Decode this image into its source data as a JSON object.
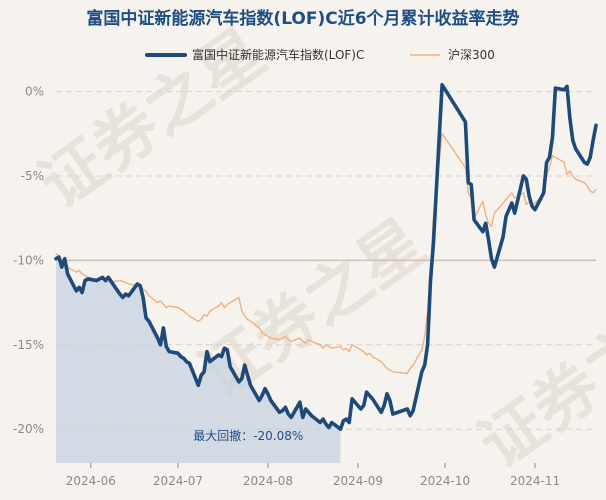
{
  "colors": {
    "background": "#f6f3ee",
    "title": "#1f4e82",
    "fund": "#1d4a78",
    "index": "#f0b07f",
    "grid": "#d9d2c8",
    "baseline": "#c9c1b6",
    "drawdown": "#c8d2df",
    "drawdown_label": "#1f4e82",
    "tick": "#8a8a8a",
    "watermark": "#e8e2da"
  },
  "watermark": {
    "text": "证券之星"
  },
  "chart_data": {
    "type": "line",
    "title": "富国中证新能源汽车指数(LOF)C近6个月累计收益率走势",
    "xlabel": "",
    "ylabel": "",
    "ylim": [
      -22,
      0.8
    ],
    "yticks": [
      0,
      -5,
      -10,
      -15,
      -20
    ],
    "ytick_labels": [
      "0%",
      "-5%",
      "-10%",
      "-15%",
      "-20%"
    ],
    "x_range": [
      "2024-05-20",
      "2024-11-22"
    ],
    "xticks": [
      "2024-06-01",
      "2024-07-01",
      "2024-08-01",
      "2024-09-01",
      "2024-10-01",
      "2024-11-01"
    ],
    "xtick_labels": [
      "2024-06",
      "2024-07",
      "2024-08",
      "2024-09",
      "2024-10",
      "2024-11"
    ],
    "legend_position": "top-center",
    "grid": true,
    "series": [
      {
        "name": "富国中证新能源汽车指数(LOF)C",
        "points": [
          [
            "2024-05-20",
            -9.9
          ],
          [
            "2024-05-21",
            -9.8
          ],
          [
            "2024-05-22",
            -10.4
          ],
          [
            "2024-05-23",
            -9.9
          ],
          [
            "2024-05-24",
            -10.8
          ],
          [
            "2024-05-27",
            -11.8
          ],
          [
            "2024-05-28",
            -11.6
          ],
          [
            "2024-05-29",
            -11.9
          ],
          [
            "2024-05-30",
            -11.2
          ],
          [
            "2024-05-31",
            -11.1
          ],
          [
            "2024-06-03",
            -11.2
          ],
          [
            "2024-06-04",
            -11.1
          ],
          [
            "2024-06-05",
            -11.0
          ],
          [
            "2024-06-06",
            -11.2
          ],
          [
            "2024-06-07",
            -11.0
          ],
          [
            "2024-06-11",
            -12.0
          ],
          [
            "2024-06-12",
            -12.2
          ],
          [
            "2024-06-13",
            -12.0
          ],
          [
            "2024-06-14",
            -12.1
          ],
          [
            "2024-06-17",
            -11.4
          ],
          [
            "2024-06-18",
            -11.5
          ],
          [
            "2024-06-19",
            -12.2
          ],
          [
            "2024-06-20",
            -13.4
          ],
          [
            "2024-06-21",
            -13.6
          ],
          [
            "2024-06-24",
            -14.6
          ],
          [
            "2024-06-25",
            -15.0
          ],
          [
            "2024-06-26",
            -14.0
          ],
          [
            "2024-06-27",
            -15.1
          ],
          [
            "2024-06-28",
            -15.4
          ],
          [
            "2024-07-01",
            -15.5
          ],
          [
            "2024-07-02",
            -15.7
          ],
          [
            "2024-07-03",
            -15.8
          ],
          [
            "2024-07-04",
            -16.0
          ],
          [
            "2024-07-05",
            -16.1
          ],
          [
            "2024-07-08",
            -17.4
          ],
          [
            "2024-07-09",
            -16.8
          ],
          [
            "2024-07-10",
            -16.6
          ],
          [
            "2024-07-11",
            -15.4
          ],
          [
            "2024-07-12",
            -16.0
          ],
          [
            "2024-07-15",
            -15.6
          ],
          [
            "2024-07-16",
            -15.7
          ],
          [
            "2024-07-17",
            -15.2
          ],
          [
            "2024-07-18",
            -15.3
          ],
          [
            "2024-07-19",
            -16.3
          ],
          [
            "2024-07-22",
            -17.2
          ],
          [
            "2024-07-23",
            -17.0
          ],
          [
            "2024-07-24",
            -16.2
          ],
          [
            "2024-07-25",
            -16.8
          ],
          [
            "2024-07-26",
            -17.4
          ],
          [
            "2024-07-29",
            -18.3
          ],
          [
            "2024-07-30",
            -18.0
          ],
          [
            "2024-07-31",
            -17.6
          ],
          [
            "2024-08-01",
            -17.9
          ],
          [
            "2024-08-02",
            -18.3
          ],
          [
            "2024-08-05",
            -19.0
          ],
          [
            "2024-08-06",
            -18.9
          ],
          [
            "2024-08-07",
            -18.7
          ],
          [
            "2024-08-08",
            -19.1
          ],
          [
            "2024-08-09",
            -19.3
          ],
          [
            "2024-08-12",
            -18.4
          ],
          [
            "2024-08-13",
            -19.3
          ],
          [
            "2024-08-14",
            -18.8
          ],
          [
            "2024-08-15",
            -19.0
          ],
          [
            "2024-08-16",
            -19.2
          ],
          [
            "2024-08-19",
            -19.6
          ],
          [
            "2024-08-20",
            -19.4
          ],
          [
            "2024-08-21",
            -19.7
          ],
          [
            "2024-08-22",
            -19.9
          ],
          [
            "2024-08-23",
            -19.6
          ],
          [
            "2024-08-26",
            -20.0
          ],
          [
            "2024-08-27",
            -19.5
          ],
          [
            "2024-08-28",
            -19.4
          ],
          [
            "2024-08-29",
            -19.6
          ],
          [
            "2024-08-30",
            -18.2
          ],
          [
            "2024-09-02",
            -18.8
          ],
          [
            "2024-09-03",
            -18.6
          ],
          [
            "2024-09-04",
            -17.8
          ],
          [
            "2024-09-05",
            -18.0
          ],
          [
            "2024-09-06",
            -18.2
          ],
          [
            "2024-09-09",
            -19.0
          ],
          [
            "2024-09-10",
            -18.6
          ],
          [
            "2024-09-11",
            -17.9
          ],
          [
            "2024-09-12",
            -18.3
          ],
          [
            "2024-09-13",
            -19.1
          ],
          [
            "2024-09-18",
            -18.8
          ],
          [
            "2024-09-19",
            -19.2
          ],
          [
            "2024-09-20",
            -18.9
          ],
          [
            "2024-09-23",
            -16.6
          ],
          [
            "2024-09-24",
            -16.2
          ],
          [
            "2024-09-25",
            -15.0
          ],
          [
            "2024-09-26",
            -11.2
          ],
          [
            "2024-09-27",
            -9.0
          ],
          [
            "2024-09-30",
            0.4
          ],
          [
            "2024-10-08",
            -1.8
          ],
          [
            "2024-10-09",
            -5.4
          ],
          [
            "2024-10-10",
            -5.5
          ],
          [
            "2024-10-11",
            -7.6
          ],
          [
            "2024-10-14",
            -8.3
          ],
          [
            "2024-10-15",
            -7.8
          ],
          [
            "2024-10-16",
            -8.8
          ],
          [
            "2024-10-17",
            -9.9
          ],
          [
            "2024-10-18",
            -10.4
          ],
          [
            "2024-10-21",
            -8.6
          ],
          [
            "2024-10-22",
            -7.4
          ],
          [
            "2024-10-23",
            -7.0
          ],
          [
            "2024-10-24",
            -6.6
          ],
          [
            "2024-10-25",
            -7.2
          ],
          [
            "2024-10-28",
            -5.0
          ],
          [
            "2024-10-29",
            -5.2
          ],
          [
            "2024-10-30",
            -6.2
          ],
          [
            "2024-10-31",
            -6.8
          ],
          [
            "2024-11-01",
            -7.0
          ],
          [
            "2024-11-04",
            -6.0
          ],
          [
            "2024-11-05",
            -4.2
          ],
          [
            "2024-11-06",
            -3.9
          ],
          [
            "2024-11-07",
            -2.7
          ],
          [
            "2024-11-08",
            0.2
          ],
          [
            "2024-11-11",
            0.1
          ],
          [
            "2024-11-12",
            0.3
          ],
          [
            "2024-11-13",
            -1.6
          ],
          [
            "2024-11-14",
            -2.9
          ],
          [
            "2024-11-15",
            -3.4
          ],
          [
            "2024-11-18",
            -4.2
          ],
          [
            "2024-11-19",
            -4.3
          ],
          [
            "2024-11-20",
            -3.9
          ],
          [
            "2024-11-21",
            -2.9
          ],
          [
            "2024-11-22",
            -2.0
          ]
        ]
      },
      {
        "name": "沪深300",
        "points": [
          [
            "2024-05-20",
            -9.6
          ],
          [
            "2024-05-22",
            -10.0
          ],
          [
            "2024-05-24",
            -10.4
          ],
          [
            "2024-05-27",
            -10.7
          ],
          [
            "2024-05-28",
            -10.6
          ],
          [
            "2024-05-29",
            -10.8
          ],
          [
            "2024-05-31",
            -11.0
          ],
          [
            "2024-06-03",
            -11.1
          ],
          [
            "2024-06-05",
            -11.0
          ],
          [
            "2024-06-07",
            -11.3
          ],
          [
            "2024-06-11",
            -11.2
          ],
          [
            "2024-06-13",
            -11.3
          ],
          [
            "2024-06-14",
            -11.4
          ],
          [
            "2024-06-17",
            -11.5
          ],
          [
            "2024-06-19",
            -11.7
          ],
          [
            "2024-06-20",
            -11.8
          ],
          [
            "2024-06-21",
            -12.1
          ],
          [
            "2024-06-24",
            -12.5
          ],
          [
            "2024-06-25",
            -12.4
          ],
          [
            "2024-06-26",
            -12.6
          ],
          [
            "2024-06-27",
            -12.8
          ],
          [
            "2024-06-28",
            -12.7
          ],
          [
            "2024-07-01",
            -12.8
          ],
          [
            "2024-07-03",
            -13.0
          ],
          [
            "2024-07-05",
            -13.3
          ],
          [
            "2024-07-08",
            -13.6
          ],
          [
            "2024-07-09",
            -13.5
          ],
          [
            "2024-07-10",
            -13.2
          ],
          [
            "2024-07-11",
            -13.3
          ],
          [
            "2024-07-12",
            -13.0
          ],
          [
            "2024-07-15",
            -12.7
          ],
          [
            "2024-07-16",
            -12.5
          ],
          [
            "2024-07-17",
            -12.8
          ],
          [
            "2024-07-18",
            -12.6
          ],
          [
            "2024-07-19",
            -12.5
          ],
          [
            "2024-07-22",
            -12.2
          ],
          [
            "2024-07-23",
            -13.0
          ],
          [
            "2024-07-24",
            -13.3
          ],
          [
            "2024-07-25",
            -13.5
          ],
          [
            "2024-07-26",
            -13.6
          ],
          [
            "2024-07-29",
            -14.0
          ],
          [
            "2024-07-30",
            -14.3
          ],
          [
            "2024-07-31",
            -14.4
          ],
          [
            "2024-08-01",
            -14.5
          ],
          [
            "2024-08-02",
            -14.6
          ],
          [
            "2024-08-05",
            -14.7
          ],
          [
            "2024-08-06",
            -14.6
          ],
          [
            "2024-08-07",
            -14.5
          ],
          [
            "2024-08-08",
            -14.7
          ],
          [
            "2024-08-09",
            -14.8
          ],
          [
            "2024-08-12",
            -14.6
          ],
          [
            "2024-08-13",
            -14.8
          ],
          [
            "2024-08-14",
            -14.9
          ],
          [
            "2024-08-15",
            -14.7
          ],
          [
            "2024-08-16",
            -14.8
          ],
          [
            "2024-08-19",
            -15.0
          ],
          [
            "2024-08-20",
            -15.2
          ],
          [
            "2024-08-21",
            -15.0
          ],
          [
            "2024-08-22",
            -15.1
          ],
          [
            "2024-08-23",
            -15.2
          ],
          [
            "2024-08-26",
            -15.1
          ],
          [
            "2024-08-27",
            -15.3
          ],
          [
            "2024-08-28",
            -15.2
          ],
          [
            "2024-08-29",
            -15.4
          ],
          [
            "2024-08-30",
            -15.0
          ],
          [
            "2024-09-02",
            -15.3
          ],
          [
            "2024-09-03",
            -15.4
          ],
          [
            "2024-09-04",
            -15.6
          ],
          [
            "2024-09-05",
            -15.5
          ],
          [
            "2024-09-06",
            -15.7
          ],
          [
            "2024-09-09",
            -16.0
          ],
          [
            "2024-09-10",
            -16.2
          ],
          [
            "2024-09-11",
            -16.4
          ],
          [
            "2024-09-12",
            -16.5
          ],
          [
            "2024-09-13",
            -16.6
          ],
          [
            "2024-09-18",
            -16.7
          ],
          [
            "2024-09-19",
            -16.4
          ],
          [
            "2024-09-20",
            -16.2
          ],
          [
            "2024-09-23",
            -15.3
          ],
          [
            "2024-09-24",
            -14.5
          ],
          [
            "2024-09-25",
            -13.0
          ],
          [
            "2024-09-26",
            -10.8
          ],
          [
            "2024-09-27",
            -7.5
          ],
          [
            "2024-09-30",
            -2.5
          ],
          [
            "2024-10-08",
            -4.5
          ],
          [
            "2024-10-09",
            -6.0
          ],
          [
            "2024-10-10",
            -6.3
          ],
          [
            "2024-10-11",
            -7.5
          ],
          [
            "2024-10-14",
            -6.5
          ],
          [
            "2024-10-15",
            -7.3
          ],
          [
            "2024-10-16",
            -7.8
          ],
          [
            "2024-10-17",
            -8.0
          ],
          [
            "2024-10-18",
            -7.2
          ],
          [
            "2024-10-21",
            -6.6
          ],
          [
            "2024-10-22",
            -6.4
          ],
          [
            "2024-10-23",
            -6.2
          ],
          [
            "2024-10-24",
            -6.0
          ],
          [
            "2024-10-25",
            -6.3
          ],
          [
            "2024-10-28",
            -6.0
          ],
          [
            "2024-10-29",
            -6.7
          ],
          [
            "2024-10-30",
            -6.5
          ],
          [
            "2024-10-31",
            -6.8
          ],
          [
            "2024-11-01",
            -6.6
          ],
          [
            "2024-11-04",
            -6.1
          ],
          [
            "2024-11-05",
            -5.0
          ],
          [
            "2024-11-06",
            -4.5
          ],
          [
            "2024-11-07",
            -3.8
          ],
          [
            "2024-11-08",
            -3.9
          ],
          [
            "2024-11-11",
            -4.2
          ],
          [
            "2024-11-12",
            -4.9
          ],
          [
            "2024-11-13",
            -4.7
          ],
          [
            "2024-11-14",
            -5.0
          ],
          [
            "2024-11-15",
            -5.2
          ],
          [
            "2024-11-18",
            -5.4
          ],
          [
            "2024-11-19",
            -5.6
          ],
          [
            "2024-11-20",
            -5.9
          ],
          [
            "2024-11-21",
            -6.0
          ],
          [
            "2024-11-22",
            -5.8
          ]
        ]
      }
    ],
    "drawdown": {
      "label": "最大回撤：-20.08%",
      "start": "2024-05-20",
      "end": "2024-08-26",
      "value": -20.08
    }
  }
}
